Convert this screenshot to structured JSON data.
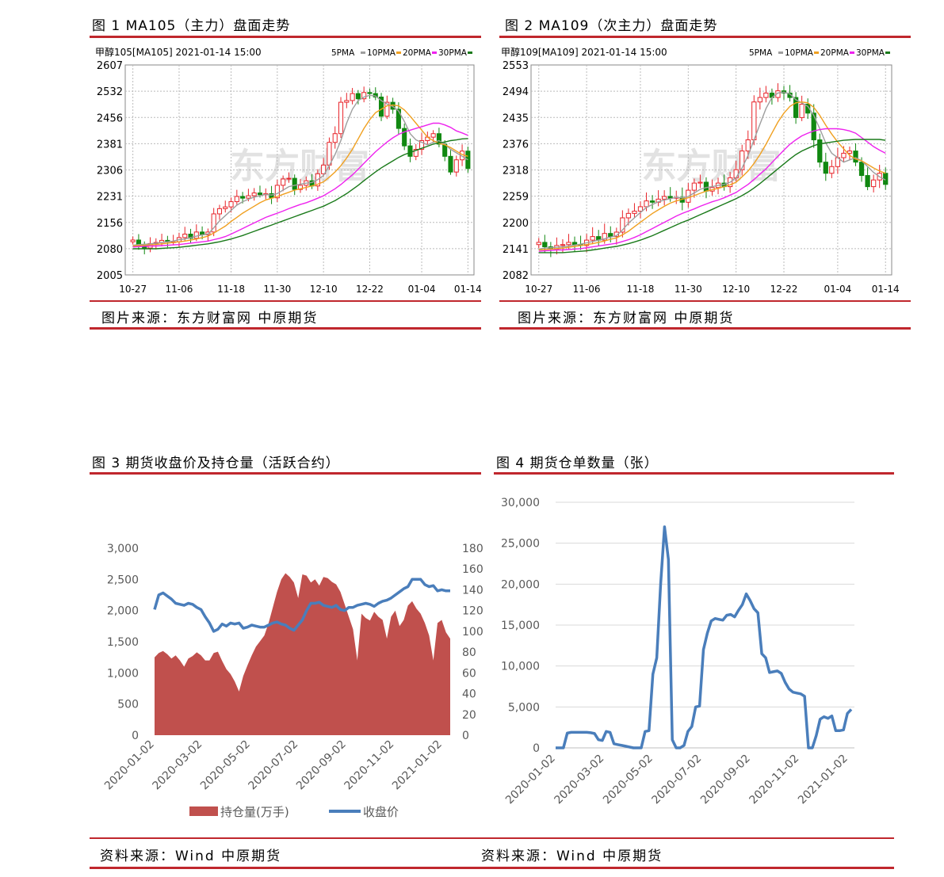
{
  "figures": {
    "fig1": {
      "title": "图 1 MA105（主力）盘面走势",
      "header": "甲醇105[MA105] 2021-01-14 15:00",
      "source": "图片来源：东方财富网  中原期货",
      "chart_data": {
        "type": "candlestick",
        "y_ticks": [
          "2607",
          "2532",
          "2456",
          "2381",
          "2306",
          "2231",
          "2156",
          "2080",
          "2005"
        ],
        "ylim": [
          2005,
          2607
        ],
        "x_ticks": [
          "10-27",
          "11-06",
          "11-18",
          "11-30",
          "12-10",
          "12-22",
          "01-04",
          "01-14"
        ],
        "legend": [
          "5PMA",
          "10PMA",
          "20PMA",
          "30PMA"
        ],
        "ma_colors": [
          "#9e9e9e",
          "#f0a020",
          "#ee22ee",
          "#1a7a1a"
        ],
        "close": [
          2105,
          2090,
          2082,
          2095,
          2098,
          2104,
          2100,
          2100,
          2112,
          2122,
          2110,
          2128,
          2120,
          2128,
          2180,
          2195,
          2200,
          2215,
          2230,
          2225,
          2232,
          2240,
          2235,
          2238,
          2226,
          2262,
          2280,
          2282,
          2250,
          2262,
          2275,
          2260,
          2295,
          2320,
          2385,
          2410,
          2500,
          2505,
          2525,
          2510,
          2528,
          2525,
          2515,
          2460,
          2500,
          2480,
          2425,
          2375,
          2345,
          2365,
          2390,
          2400,
          2410,
          2380,
          2345,
          2300,
          2335,
          2360,
          2310
        ],
        "ma5": [
          2090,
          2092,
          2093,
          2094,
          2096,
          2098,
          2100,
          2102,
          2106,
          2108,
          2112,
          2116,
          2120,
          2122,
          2140,
          2160,
          2175,
          2190,
          2205,
          2215,
          2222,
          2228,
          2232,
          2236,
          2234,
          2238,
          2248,
          2258,
          2262,
          2265,
          2268,
          2270,
          2278,
          2290,
          2318,
          2350,
          2390,
          2440,
          2480,
          2505,
          2515,
          2520,
          2518,
          2505,
          2495,
          2488,
          2475,
          2445,
          2410,
          2392,
          2385,
          2378,
          2385,
          2390,
          2380,
          2365,
          2355,
          2345,
          2335
        ],
        "ma10": [
          2088,
          2089,
          2090,
          2091,
          2092,
          2094,
          2096,
          2098,
          2100,
          2102,
          2105,
          2108,
          2112,
          2116,
          2125,
          2135,
          2145,
          2158,
          2170,
          2182,
          2192,
          2202,
          2212,
          2220,
          2225,
          2230,
          2236,
          2242,
          2248,
          2252,
          2256,
          2260,
          2265,
          2272,
          2285,
          2300,
          2318,
          2340,
          2365,
          2395,
          2425,
          2450,
          2470,
          2480,
          2490,
          2492,
          2490,
          2478,
          2460,
          2440,
          2420,
          2400,
          2390,
          2382,
          2378,
          2370,
          2360,
          2350,
          2345
        ],
        "ma20": [
          2085,
          2086,
          2087,
          2088,
          2088,
          2089,
          2090,
          2091,
          2092,
          2094,
          2096,
          2098,
          2100,
          2102,
          2106,
          2110,
          2115,
          2122,
          2130,
          2138,
          2146,
          2154,
          2162,
          2170,
          2176,
          2182,
          2188,
          2195,
          2201,
          2207,
          2212,
          2218,
          2225,
          2232,
          2242,
          2252,
          2264,
          2278,
          2292,
          2308,
          2325,
          2342,
          2358,
          2372,
          2386,
          2398,
          2408,
          2415,
          2420,
          2425,
          2430,
          2435,
          2440,
          2440,
          2435,
          2428,
          2418,
          2412,
          2405
        ],
        "ma30": [
          2080,
          2080,
          2080,
          2080,
          2080,
          2081,
          2082,
          2083,
          2084,
          2086,
          2088,
          2090,
          2092,
          2094,
          2097,
          2100,
          2104,
          2108,
          2113,
          2118,
          2124,
          2130,
          2136,
          2142,
          2148,
          2154,
          2160,
          2166,
          2172,
          2178,
          2184,
          2190,
          2196,
          2202,
          2210,
          2218,
          2228,
          2238,
          2250,
          2262,
          2275,
          2288,
          2300,
          2312,
          2322,
          2332,
          2342,
          2350,
          2356,
          2362,
          2368,
          2374,
          2380,
          2384,
          2386,
          2390,
          2392,
          2395,
          2396
        ]
      }
    },
    "fig2": {
      "title": "图 2 MA109（次主力）盘面走势",
      "header": "甲醇109[MA109] 2021-01-14 15:00",
      "source": "图片来源：东方财富网  中原期货",
      "chart_data": {
        "type": "candlestick",
        "y_ticks": [
          "2553",
          "2494",
          "2435",
          "2376",
          "2318",
          "2259",
          "2200",
          "2141",
          "2082"
        ],
        "ylim": [
          2082,
          2553
        ],
        "x_ticks": [
          "10-27",
          "11-06",
          "11-18",
          "11-30",
          "12-10",
          "12-22",
          "01-04",
          "01-14"
        ],
        "legend": [
          "5PMA",
          "10PMA",
          "20PMA",
          "30PMA"
        ],
        "ma_colors": [
          "#9e9e9e",
          "#f0a020",
          "#ee22ee",
          "#1a7a1a"
        ],
        "close": [
          2155,
          2145,
          2140,
          2148,
          2150,
          2155,
          2150,
          2148,
          2160,
          2168,
          2160,
          2175,
          2168,
          2178,
          2210,
          2220,
          2225,
          2235,
          2248,
          2245,
          2252,
          2258,
          2254,
          2256,
          2245,
          2272,
          2288,
          2290,
          2270,
          2278,
          2288,
          2280,
          2300,
          2318,
          2360,
          2385,
          2470,
          2480,
          2490,
          2480,
          2495,
          2490,
          2480,
          2435,
          2465,
          2445,
          2385,
          2335,
          2310,
          2325,
          2345,
          2355,
          2360,
          2335,
          2305,
          2280,
          2295,
          2310,
          2285
        ],
        "ma5": [
          2140,
          2142,
          2143,
          2144,
          2145,
          2147,
          2149,
          2151,
          2154,
          2157,
          2160,
          2163,
          2167,
          2170,
          2183,
          2198,
          2210,
          2222,
          2233,
          2240,
          2246,
          2250,
          2253,
          2256,
          2255,
          2258,
          2266,
          2274,
          2278,
          2280,
          2283,
          2285,
          2290,
          2300,
          2322,
          2350,
          2385,
          2420,
          2455,
          2480,
          2490,
          2492,
          2488,
          2475,
          2468,
          2460,
          2440,
          2410,
          2378,
          2355,
          2345,
          2335,
          2340,
          2345,
          2338,
          2325,
          2312,
          2302,
          2295
        ],
        "ma10": [
          2138,
          2139,
          2140,
          2141,
          2142,
          2144,
          2146,
          2148,
          2150,
          2152,
          2155,
          2158,
          2162,
          2165,
          2172,
          2180,
          2190,
          2200,
          2210,
          2220,
          2228,
          2236,
          2243,
          2248,
          2252,
          2255,
          2260,
          2265,
          2270,
          2273,
          2276,
          2280,
          2284,
          2290,
          2302,
          2315,
          2332,
          2352,
          2375,
          2400,
          2425,
          2445,
          2460,
          2468,
          2470,
          2468,
          2458,
          2440,
          2418,
          2398,
          2380,
          2365,
          2350,
          2342,
          2338,
          2330,
          2322,
          2315,
          2310
        ],
        "ma20": [
          2135,
          2136,
          2137,
          2138,
          2138,
          2139,
          2140,
          2141,
          2143,
          2145,
          2147,
          2149,
          2151,
          2153,
          2157,
          2161,
          2166,
          2172,
          2179,
          2186,
          2193,
          2200,
          2207,
          2214,
          2220,
          2225,
          2230,
          2236,
          2241,
          2246,
          2250,
          2255,
          2261,
          2267,
          2276,
          2285,
          2296,
          2308,
          2320,
          2334,
          2348,
          2362,
          2375,
          2385,
          2394,
          2400,
          2405,
          2408,
          2410,
          2410,
          2410,
          2408,
          2405,
          2400,
          2390,
          2380,
          2370,
          2362,
          2355
        ],
        "ma30": [
          2132,
          2132,
          2132,
          2132,
          2132,
          2133,
          2134,
          2135,
          2136,
          2138,
          2140,
          2142,
          2144,
          2146,
          2149,
          2152,
          2156,
          2160,
          2165,
          2170,
          2176,
          2182,
          2188,
          2194,
          2200,
          2205,
          2211,
          2217,
          2223,
          2229,
          2235,
          2241,
          2247,
          2253,
          2260,
          2268,
          2277,
          2287,
          2298,
          2309,
          2320,
          2331,
          2342,
          2352,
          2360,
          2366,
          2372,
          2376,
          2378,
          2380,
          2382,
          2384,
          2385,
          2386,
          2386,
          2386,
          2386,
          2386,
          2384
        ]
      }
    },
    "fig3": {
      "title": "图 3 期货收盘价及持仓量（活跃合约）",
      "source": "资料来源：Wind  中原期货",
      "chart_data": {
        "type": "area+line",
        "x_ticks": [
          "2020-01-02",
          "2020-03-02",
          "2020-05-02",
          "2020-07-02",
          "2020-09-02",
          "2020-11-02",
          "2021-01-02"
        ],
        "y_left_ticks": [
          "3,000",
          "2,500",
          "2,000",
          "1,500",
          "1,000",
          "500",
          "0"
        ],
        "y_right_ticks": [
          "180",
          "160",
          "140",
          "120",
          "100",
          "80",
          "60",
          "40",
          "20",
          "0"
        ],
        "ylim_left": [
          0,
          3000
        ],
        "ylim_right": [
          0,
          180
        ],
        "legend": [
          "持仓量(万手)",
          "收盘价"
        ],
        "colors": {
          "area": "#c0504d",
          "line": "#4a7ebb"
        },
        "open_interest": [
          1250,
          1320,
          1350,
          1300,
          1230,
          1280,
          1200,
          1100,
          1230,
          1270,
          1330,
          1280,
          1200,
          1200,
          1320,
          1340,
          1190,
          1060,
          980,
          860,
          700,
          950,
          1120,
          1280,
          1420,
          1510,
          1600,
          1800,
          2050,
          2300,
          2500,
          2600,
          2540,
          2450,
          2200,
          2580,
          2560,
          2450,
          2500,
          2400,
          2540,
          2520,
          2460,
          2420,
          2300,
          2100,
          1900,
          1700,
          1200,
          1950,
          1880,
          1840,
          1980,
          1900,
          1850,
          1550,
          1900,
          2000,
          1750,
          1850,
          2080,
          2150,
          2030,
          1950,
          1800,
          1600,
          1200,
          1800,
          1850,
          1650,
          1550
        ],
        "close": [
          121,
          135,
          137,
          134,
          131,
          127,
          126,
          125,
          127,
          126,
          123,
          121,
          114,
          108,
          100,
          102,
          107,
          105,
          108,
          107,
          108,
          103,
          104,
          106,
          105,
          104,
          104,
          106,
          108,
          109,
          107,
          106,
          103,
          101,
          106,
          111,
          120,
          127,
          127,
          128,
          125,
          124,
          123,
          125,
          121,
          120,
          123,
          123,
          125,
          126,
          127,
          126,
          124,
          127,
          129,
          130,
          132,
          135,
          138,
          141,
          143,
          150,
          150,
          150,
          145,
          143,
          144,
          139,
          140,
          139,
          139
        ]
      }
    },
    "fig4": {
      "title": "图 4  期货仓单数量（张）",
      "source": "资料来源：Wind  中原期货",
      "chart_data": {
        "type": "line",
        "x_ticks": [
          "2020-01-02",
          "2020-03-02",
          "2020-05-02",
          "2020-07-02",
          "2020-09-02",
          "2020-11-02",
          "2021-01-02"
        ],
        "y_ticks": [
          "30,000",
          "25,000",
          "20,000",
          "15,000",
          "10,000",
          "5,000",
          "0"
        ],
        "ylim": [
          0,
          30000
        ],
        "color": "#4a7ebb",
        "values": [
          0,
          0,
          0,
          1800,
          1900,
          1900,
          1900,
          1900,
          1900,
          1850,
          1750,
          1000,
          900,
          2000,
          1900,
          500,
          400,
          300,
          200,
          100,
          0,
          0,
          0,
          2000,
          2100,
          9000,
          11000,
          20000,
          27000,
          23000,
          1000,
          0,
          0,
          300,
          2000,
          2600,
          5000,
          5100,
          12000,
          14000,
          15500,
          15800,
          15700,
          15600,
          16200,
          16300,
          16000,
          16800,
          17500,
          18800,
          18000,
          17000,
          16500,
          11500,
          11000,
          9200,
          9300,
          9400,
          9100,
          8000,
          7200,
          6800,
          6700,
          6600,
          6300,
          0,
          0,
          1500,
          3500,
          3800,
          3600,
          3900,
          2100,
          2100,
          2200,
          4200,
          4700
        ]
      }
    }
  },
  "watermark": "东方财富"
}
